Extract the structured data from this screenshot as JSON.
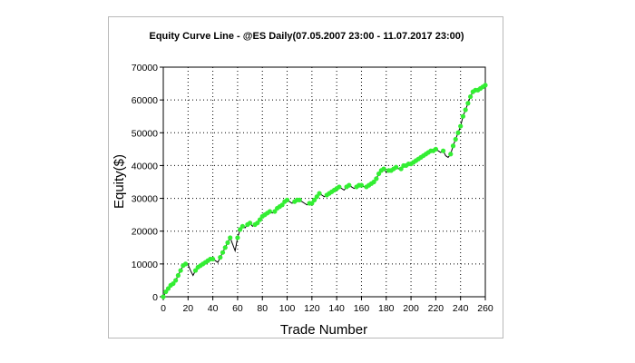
{
  "chart_data": {
    "type": "line",
    "title": "Equity Curve Line - @ES Daily(07.05.2007 23:00 - 11.07.2017 23:00)",
    "xlabel": "Trade Number",
    "ylabel": "Equity($)",
    "xlim": [
      0,
      260
    ],
    "ylim": [
      0,
      70000
    ],
    "x_ticks": [
      0,
      20,
      40,
      60,
      80,
      100,
      120,
      140,
      160,
      180,
      200,
      220,
      240,
      260
    ],
    "y_ticks": [
      0,
      10000,
      20000,
      30000,
      40000,
      50000,
      60000,
      70000
    ],
    "grid": true,
    "legend": "none",
    "colors": {
      "line": "#000000",
      "marker": "#33ee33",
      "grid": "#000000"
    },
    "series": [
      {
        "x": [
          0,
          2,
          4,
          6,
          8,
          10,
          12,
          14,
          16,
          18,
          20,
          22,
          24,
          26,
          28,
          30,
          32,
          34,
          36,
          38,
          40,
          42,
          44,
          46,
          48,
          50,
          52,
          54,
          56,
          58,
          60,
          62,
          64,
          66,
          68,
          70,
          72,
          74,
          76,
          78,
          80,
          82,
          84,
          86,
          88,
          90,
          92,
          94,
          96,
          98,
          100,
          102,
          104,
          106,
          108,
          110,
          112,
          114,
          116,
          118,
          120,
          122,
          124,
          126,
          128,
          130,
          132,
          134,
          136,
          138,
          140,
          142,
          144,
          146,
          148,
          150,
          152,
          154,
          156,
          158,
          160,
          162,
          164,
          166,
          168,
          170,
          172,
          174,
          176,
          178,
          180,
          182,
          184,
          186,
          188,
          190,
          192,
          194,
          196,
          198,
          200,
          202,
          204,
          206,
          208,
          210,
          212,
          214,
          216,
          218,
          220,
          222,
          224,
          226,
          228,
          230,
          232,
          234,
          236,
          238,
          240,
          242,
          244,
          246,
          248,
          250,
          252,
          254,
          256,
          258,
          260
        ],
        "y": [
          0,
          1500,
          2500,
          3500,
          4000,
          5000,
          6500,
          8000,
          9500,
          10000,
          9800,
          8000,
          6500,
          8000,
          9000,
          9500,
          10000,
          10500,
          11000,
          11500,
          11500,
          11000,
          10500,
          12000,
          13500,
          15000,
          16500,
          18000,
          16000,
          14000,
          18000,
          20500,
          21500,
          21000,
          22000,
          22500,
          21500,
          22000,
          22500,
          23500,
          24500,
          25000,
          25500,
          26000,
          25500,
          26000,
          27000,
          27500,
          28000,
          29000,
          29500,
          29000,
          28500,
          29000,
          29500,
          29500,
          29000,
          28500,
          28000,
          28500,
          28500,
          29500,
          30500,
          31500,
          31000,
          30500,
          31000,
          31500,
          32000,
          32500,
          33000,
          33500,
          33000,
          32500,
          33500,
          34000,
          33500,
          33000,
          33500,
          34000,
          34000,
          33500,
          33500,
          34000,
          34500,
          35000,
          36000,
          37500,
          38500,
          39000,
          38000,
          38500,
          38500,
          39000,
          39500,
          39000,
          39000,
          40000,
          40000,
          40500,
          40500,
          41000,
          41500,
          42000,
          42500,
          43000,
          43500,
          44000,
          44500,
          44500,
          45000,
          44500,
          44000,
          44500,
          43000,
          42500,
          43500,
          46000,
          48000,
          50000,
          52000,
          55000,
          57000,
          59000,
          61000,
          62500,
          63000,
          63000,
          63500,
          64000,
          64500
        ]
      }
    ]
  }
}
